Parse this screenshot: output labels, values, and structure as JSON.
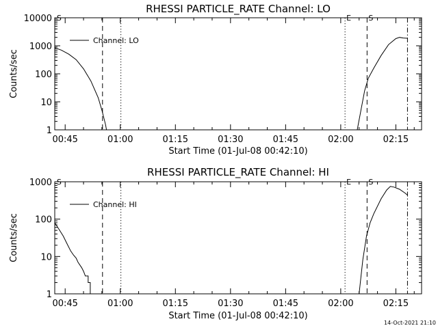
{
  "chart_data": [
    {
      "type": "line",
      "title": "RHESSI PARTICLE_RATE Channel: LO",
      "xlabel": "Start Time (01-Jul-08 00:42:10)",
      "ylabel": "Counts/sec",
      "yscale": "log",
      "ylim": [
        1,
        10000
      ],
      "yticks": [
        1,
        10,
        100,
        1000,
        10000
      ],
      "ytick_labels": [
        "1",
        "10",
        "100",
        "1000",
        "10000"
      ],
      "xlim": [
        "00:42:10",
        "02:22:00"
      ],
      "xticks": [
        "00:45",
        "01:00",
        "01:15",
        "01:30",
        "01:45",
        "02:00",
        "02:15"
      ],
      "legend": "Channel: LO",
      "legend_position": "top-left",
      "markers": [
        {
          "label": "S",
          "time": "00:42:20",
          "style": "none"
        },
        {
          "label": "",
          "time": "00:55:10",
          "style": "dashed"
        },
        {
          "label": "",
          "time": "01:00:10",
          "style": "dotted"
        },
        {
          "label": "E",
          "time": "02:01:10",
          "style": "dotted"
        },
        {
          "label": "S",
          "time": "02:07:10",
          "style": "dashed"
        },
        {
          "label": "",
          "time": "02:18:10",
          "style": "dashdot"
        }
      ],
      "series": [
        {
          "segments": [
            [
              [
                "00:42:10",
                850
              ],
              [
                "00:44:00",
                700
              ],
              [
                "00:46:00",
                500
              ],
              [
                "00:48:00",
                320
              ],
              [
                "00:50:00",
                150
              ],
              [
                "00:52:00",
                55
              ],
              [
                "00:54:00",
                14
              ],
              [
                "00:55:00",
                5
              ],
              [
                "00:56:00",
                1.5
              ],
              [
                "00:56:15",
                1
              ]
            ],
            [
              [
                "02:04:30",
                1
              ],
              [
                "02:05:30",
                5
              ],
              [
                "02:06:30",
                25
              ],
              [
                "02:07:30",
                70
              ],
              [
                "02:09:00",
                160
              ],
              [
                "02:11:00",
                450
              ],
              [
                "02:13:00",
                1100
              ],
              [
                "02:15:00",
                1800
              ],
              [
                "02:16:00",
                2000
              ],
              [
                "02:17:00",
                1900
              ],
              [
                "02:18:10",
                1850
              ]
            ]
          ]
        }
      ]
    },
    {
      "type": "line",
      "title": "RHESSI PARTICLE_RATE Channel: HI",
      "xlabel": "Start Time (01-Jul-08 00:42:10)",
      "ylabel": "Counts/sec",
      "yscale": "log",
      "ylim": [
        1,
        1000
      ],
      "yticks": [
        1,
        10,
        100,
        1000
      ],
      "ytick_labels": [
        "1",
        "10",
        "100",
        "1000"
      ],
      "xlim": [
        "00:42:10",
        "02:22:00"
      ],
      "xticks": [
        "00:45",
        "01:00",
        "01:15",
        "01:30",
        "01:45",
        "02:00",
        "02:15"
      ],
      "legend": "Channel: HI",
      "legend_position": "top-left",
      "markers": [
        {
          "label": "S",
          "time": "00:42:20",
          "style": "none"
        },
        {
          "label": "",
          "time": "00:55:10",
          "style": "dashed"
        },
        {
          "label": "",
          "time": "01:00:10",
          "style": "dotted"
        },
        {
          "label": "E",
          "time": "02:01:10",
          "style": "dotted"
        },
        {
          "label": "S",
          "time": "02:07:10",
          "style": "dashed"
        },
        {
          "label": "",
          "time": "02:18:10",
          "style": "dashdot"
        }
      ],
      "series": [
        {
          "segments": [
            [
              [
                "00:42:10",
                80
              ],
              [
                "00:43:30",
                50
              ],
              [
                "00:44:30",
                35
              ],
              [
                "00:45:30",
                22
              ],
              [
                "00:46:30",
                14
              ],
              [
                "00:47:15",
                11
              ],
              [
                "00:48:00",
                9
              ],
              [
                "00:48:30",
                7
              ],
              [
                "00:49:30",
                5
              ],
              [
                "00:50:00",
                4
              ],
              [
                "00:50:30",
                3
              ],
              [
                "00:51:15",
                3
              ],
              [
                "00:51:15",
                2
              ],
              [
                "00:51:50",
                2
              ],
              [
                "00:51:50",
                1
              ]
            ],
            [
              [
                "02:05:00",
                1
              ],
              [
                "02:06:00",
                8
              ],
              [
                "02:07:00",
                35
              ],
              [
                "02:08:00",
                80
              ],
              [
                "02:09:00",
                140
              ],
              [
                "02:11:00",
                350
              ],
              [
                "02:12:30",
                600
              ],
              [
                "02:13:30",
                750
              ],
              [
                "02:14:30",
                720
              ],
              [
                "02:16:00",
                630
              ],
              [
                "02:17:30",
                500
              ],
              [
                "02:18:10",
                440
              ]
            ]
          ]
        }
      ]
    }
  ],
  "footer": "14-Oct-2021 21:10"
}
